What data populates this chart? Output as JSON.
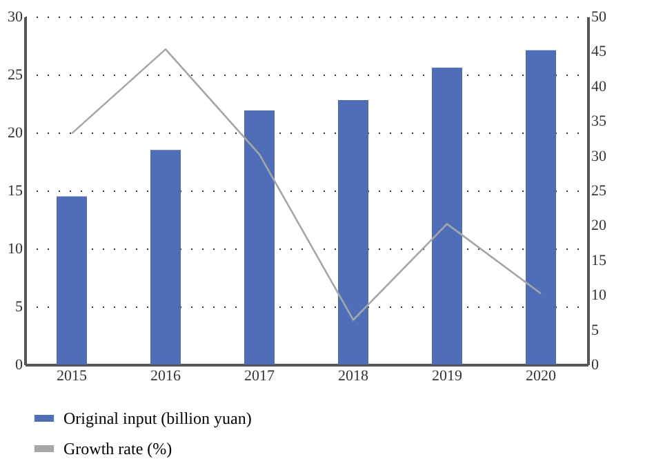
{
  "chart_data": {
    "type": "bar",
    "categories": [
      "2015",
      "2016",
      "2017",
      "2018",
      "2019",
      "2020"
    ],
    "series": [
      {
        "name": "Original input (billion yuan)",
        "color": "#4e6fb8",
        "values": [
          14.5,
          18.5,
          21.9,
          22.8,
          25.6,
          27.1
        ]
      },
      {
        "name": "Growth rate (%)",
        "type": "line",
        "axis": "y2",
        "color": "#a6a6a6",
        "values": [
          33.2,
          45.3,
          30.2,
          6.4,
          20.2,
          10.2
        ]
      }
    ],
    "ylim": [
      0,
      30
    ],
    "yticks": [
      0,
      5,
      10,
      15,
      20,
      25,
      30
    ],
    "y2lim": [
      0,
      50
    ],
    "y2ticks": [
      0,
      5,
      10,
      15,
      20,
      25,
      30,
      35,
      40,
      45,
      50
    ],
    "grid": "y",
    "legend": "bottom"
  }
}
